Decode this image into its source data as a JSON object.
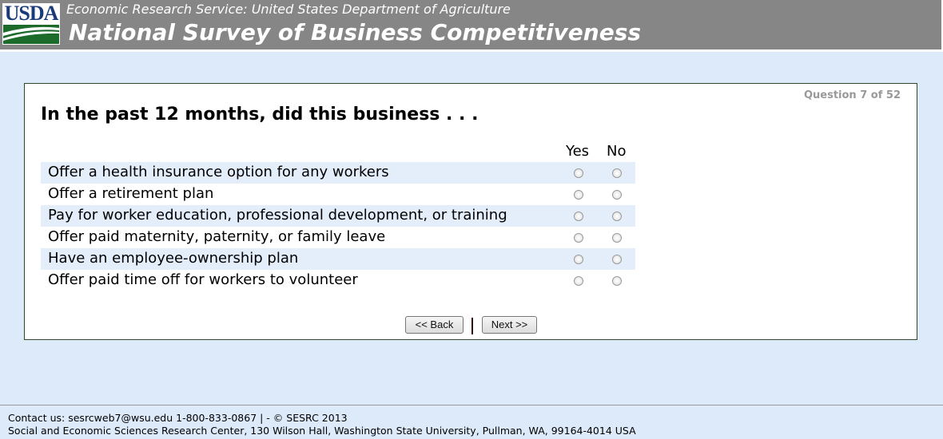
{
  "header": {
    "logo_text": "USDA",
    "subtitle": "Economic Research Service: United States Department of Agriculture",
    "title": "National Survey of Business Competitiveness"
  },
  "question": {
    "counter": "Question 7 of 52",
    "title": "In the past 12 months, did this business . . .",
    "columns": [
      "Yes",
      "No"
    ],
    "items": [
      {
        "label": "Offer a health insurance option for any workers"
      },
      {
        "label": "Offer a retirement plan"
      },
      {
        "label": "Pay for worker education, professional development, or training"
      },
      {
        "label": "Offer paid maternity, paternity, or family leave"
      },
      {
        "label": "Have an employee-ownership plan"
      },
      {
        "label": "Offer paid time off for workers to volunteer"
      }
    ]
  },
  "nav": {
    "back": "<< Back",
    "next": "Next >>"
  },
  "footer": {
    "contact": "Contact us: sesrcweb7@wsu.edu 1-800-833-0867 | - © SESRC 2013",
    "address": "Social and Economic Sciences Research Center, 130 Wilson Hall, Washington State University, Pullman, WA, 99164-4014 USA"
  }
}
